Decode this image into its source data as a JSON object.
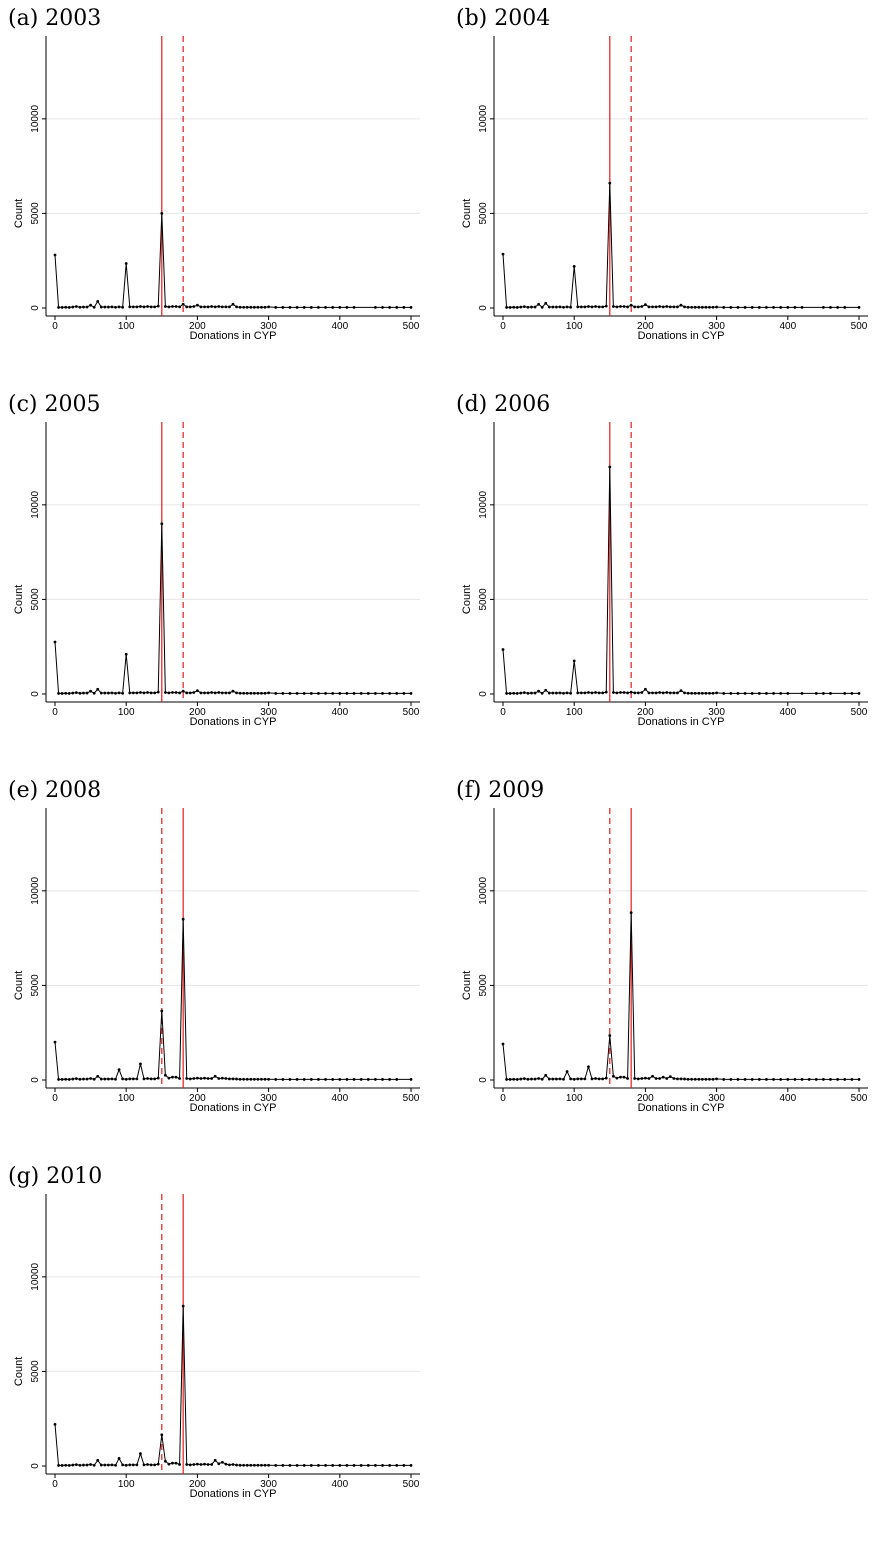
{
  "chart_data": [
    {
      "type": "line",
      "panel_label": "(a) 2003",
      "xlabel": "Donations in CYP",
      "ylabel": "Count",
      "xlim": [
        0,
        500
      ],
      "ylim": [
        0,
        12000
      ],
      "xticks": [
        0,
        100,
        200,
        300,
        400,
        500
      ],
      "yticks": [
        0,
        5000,
        10000
      ],
      "grid": true,
      "solid_line_x": 150,
      "dashed_line_x": 180,
      "x": [
        0,
        5,
        10,
        15,
        20,
        25,
        30,
        35,
        40,
        45,
        50,
        55,
        60,
        65,
        70,
        75,
        80,
        85,
        90,
        95,
        100,
        105,
        110,
        115,
        120,
        125,
        130,
        135,
        140,
        145,
        150,
        155,
        160,
        165,
        170,
        175,
        180,
        185,
        190,
        195,
        200,
        205,
        210,
        215,
        220,
        225,
        230,
        235,
        240,
        245,
        250,
        255,
        260,
        265,
        270,
        275,
        280,
        285,
        290,
        295,
        300,
        310,
        320,
        330,
        340,
        350,
        360,
        370,
        380,
        390,
        400,
        410,
        420,
        450,
        460,
        470,
        480,
        490,
        500
      ],
      "values": [
        2800,
        30,
        30,
        40,
        30,
        50,
        80,
        40,
        50,
        50,
        150,
        40,
        350,
        50,
        50,
        50,
        60,
        40,
        60,
        40,
        2350,
        60,
        60,
        60,
        80,
        60,
        80,
        60,
        60,
        100,
        5000,
        80,
        60,
        80,
        80,
        60,
        200,
        60,
        60,
        80,
        150,
        60,
        60,
        60,
        80,
        60,
        80,
        60,
        60,
        60,
        200,
        60,
        40,
        40,
        40,
        40,
        40,
        40,
        40,
        40,
        60,
        30,
        30,
        30,
        30,
        30,
        30,
        30,
        30,
        30,
        30,
        30,
        30,
        30,
        30,
        30,
        30,
        30,
        30
      ]
    },
    {
      "type": "line",
      "panel_label": "(b) 2004",
      "xlabel": "Donations in CYP",
      "ylabel": "Count",
      "xlim": [
        0,
        500
      ],
      "ylim": [
        0,
        12000
      ],
      "xticks": [
        0,
        100,
        200,
        300,
        400,
        500
      ],
      "yticks": [
        0,
        5000,
        10000
      ],
      "grid": true,
      "solid_line_x": 150,
      "dashed_line_x": 180,
      "x": [
        0,
        5,
        10,
        15,
        20,
        25,
        30,
        35,
        40,
        45,
        50,
        55,
        60,
        65,
        70,
        75,
        80,
        85,
        90,
        95,
        100,
        105,
        110,
        115,
        120,
        125,
        130,
        135,
        140,
        145,
        150,
        155,
        160,
        165,
        170,
        175,
        180,
        185,
        190,
        195,
        200,
        205,
        210,
        215,
        220,
        225,
        230,
        235,
        240,
        245,
        250,
        255,
        260,
        265,
        270,
        275,
        280,
        285,
        290,
        295,
        300,
        310,
        320,
        330,
        340,
        350,
        360,
        370,
        380,
        390,
        400,
        410,
        420,
        450,
        460,
        470,
        480,
        500
      ],
      "values": [
        2850,
        30,
        30,
        40,
        30,
        50,
        70,
        40,
        50,
        50,
        200,
        40,
        250,
        50,
        50,
        50,
        60,
        40,
        60,
        40,
        2200,
        60,
        60,
        60,
        80,
        60,
        80,
        60,
        60,
        100,
        6600,
        80,
        60,
        80,
        80,
        60,
        150,
        60,
        60,
        80,
        180,
        60,
        60,
        60,
        80,
        60,
        80,
        60,
        60,
        60,
        150,
        60,
        40,
        40,
        40,
        40,
        40,
        40,
        40,
        40,
        50,
        30,
        30,
        30,
        30,
        30,
        30,
        30,
        30,
        30,
        30,
        30,
        30,
        30,
        30,
        30,
        30,
        30
      ]
    },
    {
      "type": "line",
      "panel_label": "(c) 2005",
      "xlabel": "Donations in CYP",
      "ylabel": "Count",
      "xlim": [
        0,
        500
      ],
      "ylim": [
        0,
        12000
      ],
      "xticks": [
        0,
        100,
        200,
        300,
        400,
        500
      ],
      "yticks": [
        0,
        5000,
        10000
      ],
      "grid": true,
      "solid_line_x": 150,
      "dashed_line_x": 180,
      "x": [
        0,
        5,
        10,
        15,
        20,
        25,
        30,
        35,
        40,
        45,
        50,
        55,
        60,
        65,
        70,
        75,
        80,
        85,
        90,
        95,
        100,
        105,
        110,
        115,
        120,
        125,
        130,
        135,
        140,
        145,
        150,
        155,
        160,
        165,
        170,
        175,
        180,
        185,
        190,
        195,
        200,
        205,
        210,
        215,
        220,
        225,
        230,
        235,
        240,
        245,
        250,
        255,
        260,
        265,
        270,
        275,
        280,
        285,
        290,
        295,
        300,
        310,
        320,
        330,
        340,
        350,
        360,
        370,
        380,
        390,
        400,
        410,
        420,
        430,
        440,
        450,
        460,
        470,
        480,
        490,
        500
      ],
      "values": [
        2750,
        30,
        30,
        40,
        30,
        50,
        70,
        40,
        50,
        50,
        150,
        40,
        250,
        50,
        50,
        50,
        60,
        40,
        60,
        40,
        2100,
        60,
        60,
        60,
        80,
        60,
        80,
        60,
        60,
        100,
        9000,
        80,
        60,
        80,
        80,
        60,
        150,
        60,
        60,
        80,
        180,
        60,
        60,
        60,
        80,
        60,
        80,
        60,
        60,
        60,
        150,
        60,
        40,
        40,
        40,
        40,
        40,
        40,
        40,
        40,
        60,
        30,
        30,
        30,
        30,
        30,
        30,
        30,
        30,
        30,
        30,
        30,
        30,
        30,
        30,
        30,
        30,
        30,
        30,
        30,
        30
      ]
    },
    {
      "type": "line",
      "panel_label": "(d) 2006",
      "xlabel": "Donations in CYP",
      "ylabel": "Count",
      "xlim": [
        0,
        500
      ],
      "ylim": [
        0,
        12000
      ],
      "xticks": [
        0,
        100,
        200,
        300,
        400,
        500
      ],
      "yticks": [
        0,
        5000,
        10000
      ],
      "grid": true,
      "solid_line_x": 150,
      "dashed_line_x": 180,
      "x": [
        0,
        5,
        10,
        15,
        20,
        25,
        30,
        35,
        40,
        45,
        50,
        55,
        60,
        65,
        70,
        75,
        80,
        85,
        90,
        95,
        100,
        105,
        110,
        115,
        120,
        125,
        130,
        135,
        140,
        145,
        150,
        155,
        160,
        165,
        170,
        175,
        180,
        185,
        190,
        195,
        200,
        205,
        210,
        215,
        220,
        225,
        230,
        235,
        240,
        245,
        250,
        255,
        260,
        265,
        270,
        275,
        280,
        285,
        290,
        295,
        300,
        310,
        320,
        330,
        340,
        350,
        360,
        370,
        380,
        390,
        400,
        420,
        440,
        450,
        460,
        480,
        490,
        500
      ],
      "values": [
        2350,
        30,
        30,
        40,
        30,
        50,
        70,
        40,
        50,
        50,
        150,
        40,
        200,
        50,
        50,
        50,
        60,
        40,
        60,
        40,
        1750,
        60,
        60,
        60,
        80,
        60,
        80,
        60,
        60,
        100,
        12000,
        80,
        60,
        80,
        80,
        60,
        100,
        60,
        60,
        80,
        250,
        60,
        60,
        60,
        80,
        60,
        80,
        60,
        60,
        60,
        180,
        60,
        40,
        40,
        40,
        40,
        40,
        40,
        40,
        40,
        60,
        30,
        30,
        30,
        30,
        30,
        30,
        30,
        30,
        30,
        30,
        30,
        30,
        30,
        30,
        30,
        30,
        30
      ]
    },
    {
      "type": "line",
      "panel_label": "(e) 2008",
      "xlabel": "Donations in CYP",
      "ylabel": "Count",
      "xlim": [
        0,
        500
      ],
      "ylim": [
        0,
        12000
      ],
      "xticks": [
        0,
        100,
        200,
        300,
        400,
        500
      ],
      "yticks": [
        0,
        5000,
        10000
      ],
      "grid": true,
      "solid_line_x": 180,
      "dashed_line_x": 150,
      "x": [
        0,
        5,
        10,
        15,
        20,
        25,
        30,
        35,
        40,
        45,
        50,
        55,
        60,
        65,
        70,
        75,
        80,
        85,
        90,
        95,
        100,
        105,
        110,
        115,
        120,
        125,
        130,
        135,
        140,
        145,
        150,
        155,
        160,
        165,
        170,
        175,
        180,
        185,
        190,
        195,
        200,
        205,
        210,
        215,
        220,
        225,
        230,
        235,
        240,
        245,
        250,
        255,
        260,
        265,
        270,
        275,
        280,
        285,
        290,
        295,
        300,
        310,
        320,
        330,
        340,
        350,
        360,
        370,
        380,
        390,
        400,
        410,
        420,
        430,
        440,
        450,
        460,
        470,
        480,
        500
      ],
      "values": [
        2000,
        30,
        30,
        40,
        30,
        50,
        70,
        40,
        50,
        50,
        80,
        40,
        200,
        50,
        50,
        50,
        60,
        40,
        550,
        60,
        40,
        60,
        60,
        60,
        850,
        60,
        80,
        60,
        60,
        100,
        3650,
        250,
        100,
        150,
        150,
        80,
        8500,
        80,
        60,
        80,
        100,
        80,
        100,
        80,
        80,
        200,
        80,
        100,
        80,
        60,
        60,
        50,
        40,
        40,
        40,
        40,
        40,
        40,
        40,
        40,
        40,
        30,
        30,
        30,
        30,
        30,
        30,
        30,
        30,
        30,
        30,
        30,
        30,
        30,
        30,
        30,
        30,
        30,
        30,
        30
      ]
    },
    {
      "type": "line",
      "panel_label": "(f) 2009",
      "xlabel": "Donations in CYP",
      "ylabel": "Count",
      "xlim": [
        0,
        500
      ],
      "ylim": [
        0,
        12000
      ],
      "xticks": [
        0,
        100,
        200,
        300,
        400,
        500
      ],
      "yticks": [
        0,
        5000,
        10000
      ],
      "grid": true,
      "solid_line_x": 180,
      "dashed_line_x": 150,
      "x": [
        0,
        5,
        10,
        15,
        20,
        25,
        30,
        35,
        40,
        45,
        50,
        55,
        60,
        65,
        70,
        75,
        80,
        85,
        90,
        95,
        100,
        105,
        110,
        115,
        120,
        125,
        130,
        135,
        140,
        145,
        150,
        155,
        160,
        165,
        170,
        175,
        180,
        185,
        190,
        195,
        200,
        205,
        210,
        215,
        220,
        225,
        230,
        235,
        240,
        245,
        250,
        255,
        260,
        265,
        270,
        275,
        280,
        285,
        290,
        295,
        300,
        310,
        320,
        330,
        340,
        350,
        360,
        370,
        380,
        390,
        400,
        410,
        420,
        430,
        440,
        450,
        460,
        470,
        480,
        490,
        500
      ],
      "values": [
        1900,
        30,
        30,
        40,
        30,
        50,
        70,
        40,
        50,
        50,
        80,
        40,
        250,
        50,
        50,
        50,
        60,
        40,
        450,
        60,
        40,
        60,
        60,
        60,
        700,
        60,
        80,
        60,
        60,
        100,
        2350,
        200,
        100,
        150,
        150,
        80,
        8850,
        80,
        60,
        80,
        100,
        80,
        200,
        80,
        80,
        150,
        80,
        180,
        80,
        60,
        60,
        50,
        40,
        40,
        40,
        40,
        40,
        40,
        40,
        40,
        60,
        30,
        30,
        30,
        30,
        30,
        30,
        30,
        30,
        30,
        30,
        30,
        30,
        30,
        30,
        30,
        30,
        30,
        30,
        30,
        30
      ]
    },
    {
      "type": "line",
      "panel_label": "(g) 2010",
      "xlabel": "Donations in CYP",
      "ylabel": "Count",
      "xlim": [
        0,
        500
      ],
      "ylim": [
        0,
        12000
      ],
      "xticks": [
        0,
        100,
        200,
        300,
        400,
        500
      ],
      "yticks": [
        0,
        5000,
        10000
      ],
      "grid": true,
      "solid_line_x": 180,
      "dashed_line_x": 150,
      "x": [
        0,
        5,
        10,
        15,
        20,
        25,
        30,
        35,
        40,
        45,
        50,
        55,
        60,
        65,
        70,
        75,
        80,
        85,
        90,
        95,
        100,
        105,
        110,
        115,
        120,
        125,
        130,
        135,
        140,
        145,
        150,
        155,
        160,
        165,
        170,
        175,
        180,
        185,
        190,
        195,
        200,
        205,
        210,
        215,
        220,
        225,
        230,
        235,
        240,
        245,
        250,
        255,
        260,
        265,
        270,
        275,
        280,
        285,
        290,
        295,
        300,
        310,
        320,
        330,
        340,
        350,
        360,
        370,
        380,
        390,
        400,
        410,
        420,
        430,
        440,
        450,
        460,
        470,
        480,
        490,
        500
      ],
      "values": [
        2200,
        30,
        30,
        40,
        30,
        50,
        70,
        40,
        50,
        50,
        80,
        40,
        300,
        50,
        50,
        50,
        60,
        40,
        400,
        60,
        40,
        60,
        60,
        60,
        650,
        60,
        80,
        60,
        60,
        100,
        1650,
        250,
        100,
        150,
        150,
        80,
        8450,
        80,
        60,
        80,
        100,
        80,
        100,
        80,
        80,
        300,
        120,
        200,
        100,
        60,
        80,
        50,
        40,
        40,
        40,
        40,
        40,
        40,
        40,
        40,
        40,
        30,
        30,
        30,
        30,
        30,
        30,
        30,
        30,
        30,
        30,
        30,
        30,
        30,
        30,
        30,
        30,
        30,
        30,
        30,
        30
      ]
    }
  ]
}
